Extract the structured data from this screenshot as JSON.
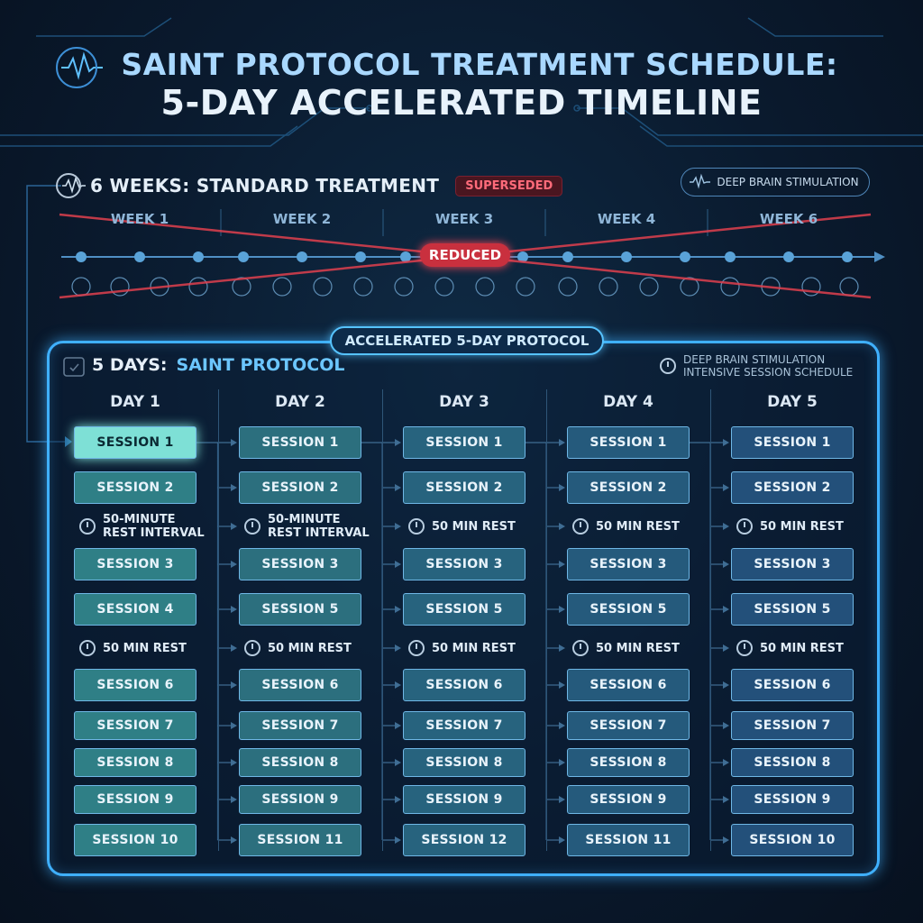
{
  "header": {
    "title_line1": "SAINT PROTOCOL TREATMENT SCHEDULE:",
    "title_line2": "5-DAY ACCELERATED TIMELINE",
    "icon": "pulse-icon"
  },
  "standard": {
    "title": "6 WEEKS: STANDARD TREATMENT",
    "badge": "SUPERSEDED",
    "pill": "DEEP BRAIN STIMULATION",
    "weeks": [
      "WEEK 1",
      "WEEK 2",
      "WEEK 3",
      "WEEK 4",
      "WEEK 6"
    ],
    "overlay_label": "REDUCED",
    "strike_color": "#e0404e"
  },
  "protocol": {
    "banner": "ACCELERATED 5-DAY PROTOCOL",
    "title_white": "5 DAYS:",
    "title_cyan": "SAINT PROTOCOL",
    "note_line1": "DEEP BRAIN STIMULATION",
    "note_line2": "INTENSIVE SESSION SCHEDULE",
    "days": [
      {
        "name": "DAY 1",
        "rows": [
          "SESSION 1",
          "SESSION 2",
          "50-MINUTE|REST INTERVAL",
          "SESSION 3",
          "SESSION 4",
          "50 MIN REST",
          "SESSION 6",
          "SESSION 7",
          "SESSION 8",
          "SESSION 9",
          "SESSION 10"
        ]
      },
      {
        "name": "DAY 2",
        "rows": [
          "SESSION 1",
          "SESSION 2",
          "50-MINUTE|REST INTERVAL",
          "SESSION 3",
          "SESSION 5",
          "50 MIN REST",
          "SESSION 6",
          "SESSION 7",
          "SESSION 8",
          "SESSION 9",
          "SESSION 11"
        ]
      },
      {
        "name": "DAY 3",
        "rows": [
          "SESSION 1",
          "SESSION 2",
          "50 MIN REST",
          "SESSION 3",
          "SESSION 5",
          "50 MIN REST",
          "SESSION 6",
          "SESSION 7",
          "SESSION 8",
          "SESSION 9",
          "SESSION 12"
        ]
      },
      {
        "name": "DAY 4",
        "rows": [
          "SESSION 1",
          "SESSION 2",
          "50 MIN REST",
          "SESSION 3",
          "SESSION 5",
          "50 MIN REST",
          "SESSION 6",
          "SESSION 7",
          "SESSION 8",
          "SESSION 9",
          "SESSION 11"
        ]
      },
      {
        "name": "DAY 5",
        "rows": [
          "SESSION 1",
          "SESSION 2",
          "50 MIN REST",
          "SESSION 3",
          "SESSION 5",
          "50 MIN REST",
          "SESSION 6",
          "SESSION 7",
          "SESSION 8",
          "SESSION 9",
          "SESSION 10"
        ]
      }
    ],
    "colors": {
      "day1": "#2f7f86",
      "day2": "#2c6f7e",
      "day3": "#27637e",
      "day4": "#255a7c",
      "day5": "#23507a",
      "highlight": "#7ee0d6",
      "accent": "#3fb0ff"
    }
  }
}
